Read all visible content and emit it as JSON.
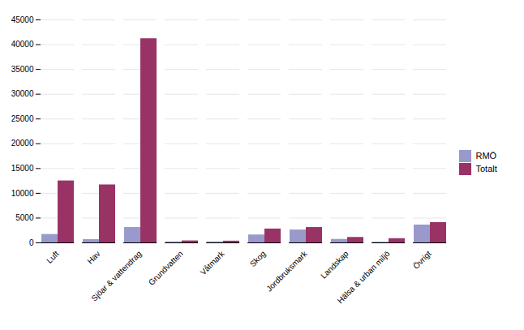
{
  "chart_data": {
    "type": "bar",
    "categories": [
      "Luft",
      "Hav",
      "Sjöar & vattendrag",
      "Grundvatten",
      "Våtmark",
      "Skog",
      "Jordbruksmark",
      "Landskap",
      "Hälsa & urban miljö",
      "Övrigt"
    ],
    "series": [
      {
        "name": "RMÖ",
        "color": "#9999CC",
        "values": [
          1700,
          650,
          3100,
          200,
          200,
          1600,
          2600,
          700,
          150,
          3600
        ]
      },
      {
        "name": "Totalt",
        "color": "#993366",
        "values": [
          12500,
          11700,
          41200,
          400,
          350,
          2800,
          3100,
          1100,
          850,
          4100
        ]
      }
    ],
    "ylim": [
      0,
      45000
    ],
    "yticks": [
      0,
      5000,
      10000,
      15000,
      20000,
      25000,
      30000,
      35000,
      40000,
      45000
    ],
    "grid": true,
    "legend": "right"
  }
}
